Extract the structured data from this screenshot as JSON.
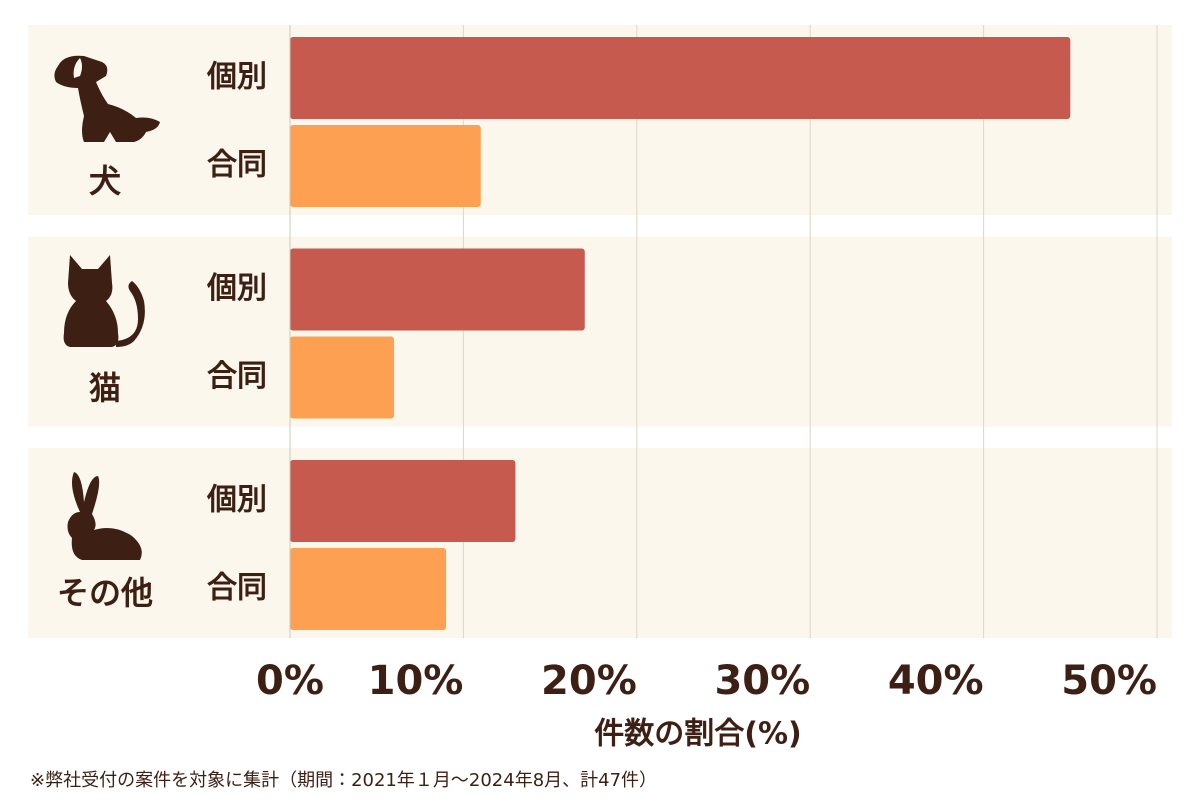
{
  "chart_data": {
    "type": "hbar",
    "categories": [
      "犬",
      "猫",
      "その他"
    ],
    "series": [
      {
        "name": "個別",
        "color": "#c65a4e",
        "values": [
          45,
          17,
          13
        ]
      },
      {
        "name": "合同",
        "color": "#fda052",
        "values": [
          11,
          6,
          9
        ]
      }
    ],
    "xlim": [
      0,
      50
    ],
    "xticks": [
      {
        "value": 0,
        "label": "0%"
      },
      {
        "value": 10,
        "label": "10%"
      },
      {
        "value": 20,
        "label": "20%"
      },
      {
        "value": 30,
        "label": "30%"
      },
      {
        "value": 40,
        "label": "40%"
      },
      {
        "value": 50,
        "label": "50%"
      }
    ],
    "grid": true,
    "x_label": "件数の割合(%)",
    "note": "※弊社受付の案件を対象に集計（期間：2021年１月～2024年8月、計47件）"
  }
}
